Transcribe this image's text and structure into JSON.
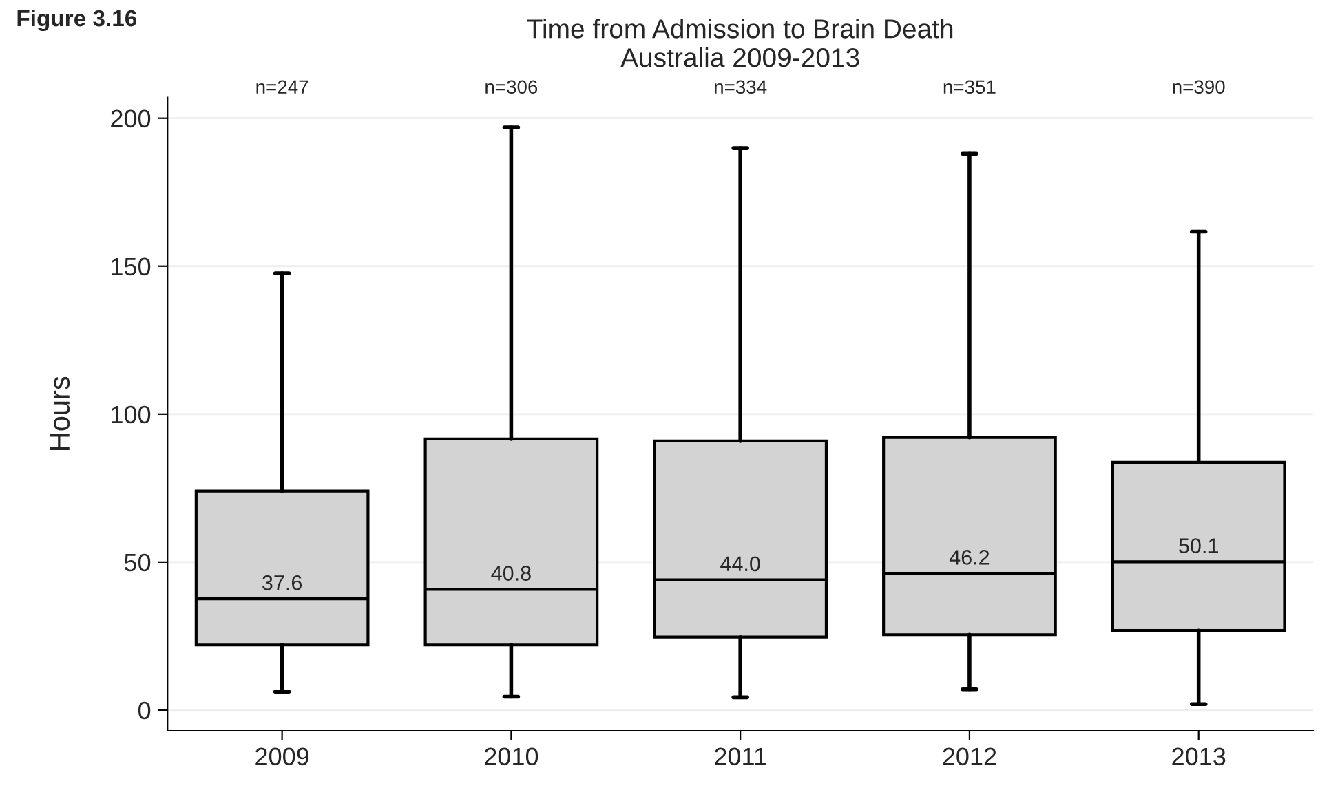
{
  "chart_data": {
    "type": "box",
    "title": "Time from Admission to Brain Death\nAustralia 2009-2013",
    "ylabel": "Hours",
    "categories": [
      "2009",
      "2010",
      "2011",
      "2012",
      "2013"
    ],
    "boxes": [
      {
        "low": 6.2,
        "q1": 22.0,
        "median": 37.6,
        "q3": 74.0,
        "high": 147.6
      },
      {
        "low": 4.5,
        "q1": 22.0,
        "median": 40.8,
        "q3": 91.6,
        "high": 196.9
      },
      {
        "low": 4.3,
        "q1": 24.7,
        "median": 44.0,
        "q3": 90.9,
        "high": 189.9
      },
      {
        "low": 7.0,
        "q1": 25.5,
        "median": 46.2,
        "q3": 92.1,
        "high": 188.0
      },
      {
        "low": 2.0,
        "q1": 26.9,
        "median": 50.1,
        "q3": 83.7,
        "high": 161.7
      }
    ],
    "color": "#d3d3d3",
    "value_labels": [
      "37.6",
      "40.8",
      "44.0",
      "46.2",
      "50.1"
    ],
    "ylim": [
      -7,
      207
    ],
    "yticks": [
      0,
      50,
      100,
      150,
      200
    ],
    "grid": "y",
    "annotations": [
      "Figure 3.16",
      "n=247",
      "n=306",
      "n=334",
      "n=351",
      "n=390"
    ]
  }
}
